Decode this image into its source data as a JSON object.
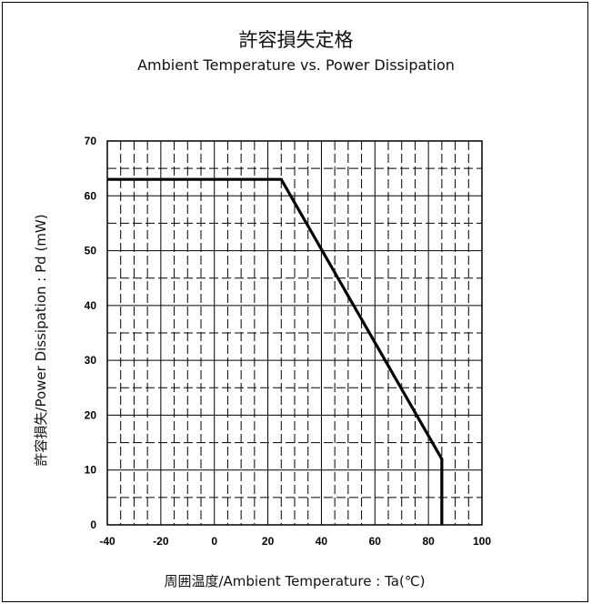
{
  "header": {
    "title": "許容損失定格",
    "subtitle": "Ambient Temperature vs. Power Dissipation"
  },
  "colors": {
    "line": "#000000",
    "grid": "#000000",
    "background": "#ffffff"
  },
  "chart_data": {
    "type": "line",
    "title": "許容損失定格",
    "subtitle": "Ambient Temperature vs. Power Dissipation",
    "xlabel": "周囲温度/Ambient Temperature : Ta(℃)",
    "ylabel": "許容損失/Power Dissipation : Pd (mW)",
    "xlim": [
      -40,
      100
    ],
    "ylim": [
      0,
      70
    ],
    "xticks": [
      -40,
      -20,
      0,
      20,
      40,
      60,
      80,
      100
    ],
    "yticks": [
      0,
      10,
      20,
      30,
      40,
      50,
      60,
      70
    ],
    "grid": true,
    "series": [
      {
        "x": [
          -40,
          25,
          85,
          85
        ],
        "y": [
          63,
          63,
          12,
          0
        ]
      }
    ]
  }
}
